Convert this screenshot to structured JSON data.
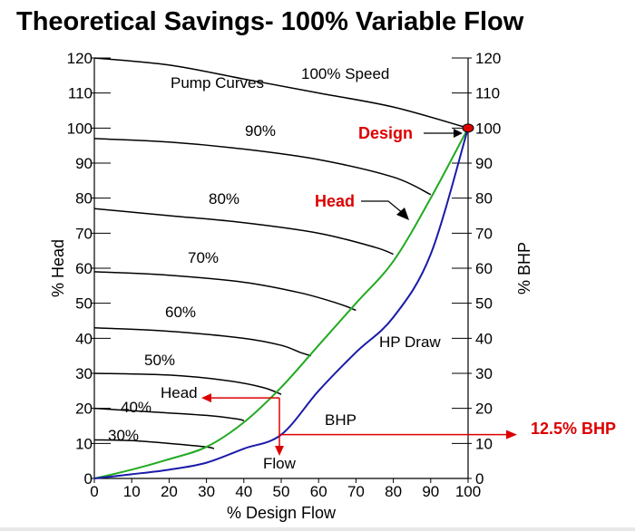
{
  "title": "Theoretical Savings- 100% Variable Flow",
  "chart_data": {
    "type": "line",
    "xlabel": "% Design Flow",
    "ylabel_left": "% Head",
    "ylabel_right": "% BHP",
    "xlim": [
      0,
      100
    ],
    "ylim": [
      0,
      120
    ],
    "x_ticks": [
      0,
      10,
      20,
      30,
      40,
      50,
      60,
      70,
      80,
      90,
      100
    ],
    "y_ticks_left": [
      0,
      10,
      20,
      30,
      40,
      50,
      60,
      70,
      80,
      90,
      100,
      110,
      120
    ],
    "y_ticks_right": [
      0,
      10,
      20,
      30,
      40,
      50,
      60,
      70,
      80,
      90,
      100,
      110,
      120
    ],
    "pump_curves": [
      {
        "name": "100% Speed",
        "x": [
          0,
          20,
          40,
          60,
          80,
          100
        ],
        "y": [
          120,
          118,
          114,
          110,
          106,
          100
        ]
      },
      {
        "name": "90%",
        "x": [
          0,
          20,
          40,
          60,
          80,
          90
        ],
        "y": [
          97,
          96,
          94,
          91,
          86,
          81
        ]
      },
      {
        "name": "80%",
        "x": [
          0,
          20,
          40,
          60,
          75,
          80
        ],
        "y": [
          77,
          75,
          73,
          70,
          66,
          64
        ]
      },
      {
        "name": "70%",
        "x": [
          0,
          20,
          40,
          55,
          65,
          70
        ],
        "y": [
          59,
          58,
          56,
          53,
          50,
          48
        ]
      },
      {
        "name": "60%",
        "x": [
          0,
          20,
          40,
          50,
          55,
          58
        ],
        "y": [
          43,
          42,
          40,
          38,
          36,
          35
        ]
      },
      {
        "name": "50%",
        "x": [
          0,
          20,
          35,
          45,
          50
        ],
        "y": [
          30,
          29.5,
          28,
          26,
          24
        ]
      },
      {
        "name": "40%",
        "x": [
          0,
          15,
          30,
          38,
          40
        ],
        "y": [
          20,
          19,
          18,
          17,
          16.5
        ]
      },
      {
        "name": "30%",
        "x": [
          0,
          10,
          20,
          30,
          32
        ],
        "y": [
          11,
          10.8,
          10,
          9,
          8.5
        ]
      }
    ],
    "series": [
      {
        "name": "Head",
        "color": "#22aa22",
        "x": [
          0,
          10,
          20,
          30,
          40,
          50,
          60,
          70,
          80,
          90,
          100
        ],
        "y": [
          0,
          2.5,
          5.5,
          9,
          16,
          26,
          38,
          50,
          62,
          80,
          100
        ]
      },
      {
        "name": "BHP",
        "color": "#1a1aaa",
        "x": [
          0,
          10,
          20,
          30,
          40,
          50,
          60,
          70,
          80,
          90,
          100
        ],
        "y": [
          0,
          1.2,
          2.5,
          4.5,
          8.5,
          12.5,
          25,
          36,
          46,
          64,
          100
        ]
      }
    ],
    "design_point": {
      "x": 100,
      "y": 100,
      "color": "#dd0000"
    },
    "labels": {
      "pump_curves": "Pump Curves",
      "speed_100": "100% Speed",
      "speed_90": "90%",
      "speed_80": "80%",
      "speed_70": "70%",
      "speed_60": "60%",
      "speed_50": "50%",
      "speed_40": "40%",
      "speed_30": "30%",
      "design": "Design",
      "head_callout": "Head",
      "hp_draw": "HP Draw",
      "bhp": "BHP",
      "head_marker": "Head",
      "flow_marker": "Flow",
      "bhp_result": "12.5% BHP"
    },
    "marker_colors": {
      "callout": "#dd0000",
      "text": "#000000"
    },
    "operating_point": {
      "flow": 50,
      "head": 23,
      "bhp": 12.5
    }
  }
}
